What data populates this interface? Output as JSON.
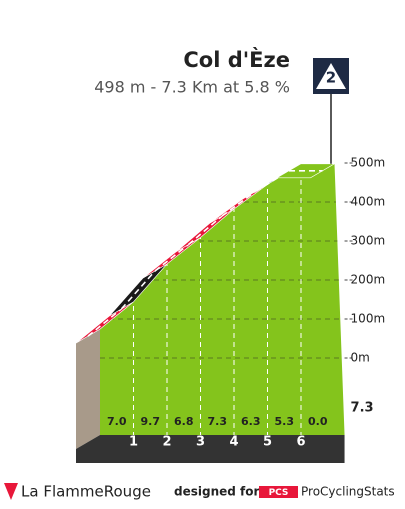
{
  "header": {
    "title": "Col d'Èze",
    "subtitle": "498 m - 7.3 Km at 5.8 %",
    "category": "2"
  },
  "chart_data": {
    "type": "climb-profile",
    "summit_m": 498,
    "distance_km": 7.3,
    "segments": {
      "gradients": [
        7.0,
        9.7,
        6.8,
        7.3,
        6.3,
        5.3,
        0.0
      ],
      "value_labels": [
        "7.0",
        "9.7",
        "6.8",
        "7.3",
        "6.3",
        "5.3",
        "0.0"
      ],
      "colors": [
        "#e8173a",
        "#1a1a1a",
        "#e8173a",
        "#e8173a",
        "#e8173a",
        "#1d5b8c",
        "#84c41c"
      ]
    },
    "km_markers": [
      1,
      2,
      3,
      4,
      5,
      6
    ],
    "ylim": [
      0,
      500
    ],
    "yticks": [
      {
        "value": 0,
        "label": "0m"
      },
      {
        "value": 100,
        "label": "100m"
      },
      {
        "value": 200,
        "label": "200m"
      },
      {
        "value": 300,
        "label": "300m"
      },
      {
        "value": 400,
        "label": "400m"
      },
      {
        "value": 500,
        "label": "500m"
      }
    ]
  },
  "footer": {
    "brand": "La FlammeRouge",
    "designed_for": "designed for",
    "pcs_logo": "PCS",
    "site": "ProCyclingStats"
  }
}
